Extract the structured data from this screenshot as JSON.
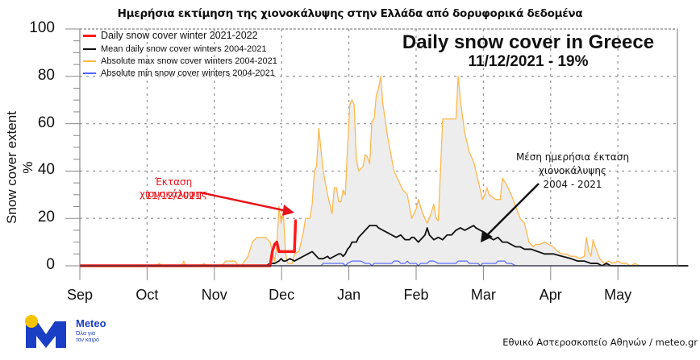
{
  "header": {
    "title": "Ημερήσια εκτίμηση της χιονοκάλυψης στην Ελλάδα από δορυφορικά δεδομένα"
  },
  "plot_title": {
    "line1": "Daily snow cover in Greece",
    "line2": "11/12/2021 - 19%"
  },
  "annotations": {
    "current": {
      "line1": "Έκταση χιονοκάλυψης",
      "line2": "11/12/2021",
      "color": "#e8141b"
    },
    "mean": {
      "line1": "Μέση ημερήσια έκταση",
      "line2": "χιονοκάλυψης",
      "line3": "2004 - 2021",
      "color": "#111111"
    }
  },
  "logo": {
    "name": "Meteo",
    "tagline_1": "Όλα για",
    "tagline_2": "τον καιρό",
    "primary_color": "#1a3fc4",
    "accent_color": "#f5c400"
  },
  "footer": {
    "credit": "Εθνικό Αστεροσκοπείο Αθηνών / meteo.gr"
  },
  "chart_data": {
    "type": "area",
    "title": "Daily snow cover in Greece",
    "subtitle": "11/12/2021 - 19%",
    "xlabel": "",
    "ylabel": "Snow cover extent %",
    "ylim": [
      0,
      100
    ],
    "yticks": [
      0,
      20,
      40,
      60,
      80,
      100
    ],
    "xticks": [
      "Sep",
      "Oct",
      "Nov",
      "Dec",
      "Jan",
      "Feb",
      "Mar",
      "Apr",
      "May"
    ],
    "x_unit": "days since Sep 1",
    "grid": true,
    "legend_position": "upper left",
    "legend": [
      {
        "label": "Daily snow cover winter 2021-2022",
        "color": "#ff1a1a"
      },
      {
        "label": "Mean daily snow cover winters 2004-2021",
        "color": "#111111"
      },
      {
        "label": "Absolute max snow cover winters 2004-2021",
        "color": "#ffb84d"
      },
      {
        "label": "Absolute min snow cover winters 2004-2021",
        "color": "#5566ff"
      }
    ],
    "series": [
      {
        "name": "Absolute max snow cover winters 2004-2021",
        "color": "#ffb84d",
        "fill": "#ededed",
        "points": [
          [
            0,
            0
          ],
          [
            34,
            0
          ],
          [
            36,
            1
          ],
          [
            37,
            0
          ],
          [
            46,
            0
          ],
          [
            47,
            2
          ],
          [
            48,
            0
          ],
          [
            55,
            0
          ],
          [
            56,
            1
          ],
          [
            57,
            0
          ],
          [
            64,
            0
          ],
          [
            66,
            2
          ],
          [
            70,
            2
          ],
          [
            72,
            0
          ],
          [
            73,
            0
          ],
          [
            76,
            4
          ],
          [
            78,
            10
          ],
          [
            80,
            12
          ],
          [
            84,
            12
          ],
          [
            86,
            10
          ],
          [
            88,
            2
          ],
          [
            89,
            8
          ],
          [
            90,
            25
          ],
          [
            91,
            18
          ],
          [
            92,
            22
          ],
          [
            93,
            5
          ],
          [
            94,
            1
          ],
          [
            96,
            1
          ],
          [
            97,
            5
          ],
          [
            99,
            6
          ],
          [
            101,
            14
          ],
          [
            102,
            20
          ],
          [
            104,
            20
          ],
          [
            105,
            26
          ],
          [
            106,
            40
          ],
          [
            107,
            42
          ],
          [
            108,
            58
          ],
          [
            109,
            49
          ],
          [
            110,
            40
          ],
          [
            111,
            35
          ],
          [
            112,
            30
          ],
          [
            113,
            26
          ],
          [
            114,
            22
          ],
          [
            115,
            33
          ],
          [
            116,
            33
          ],
          [
            117,
            27
          ],
          [
            118,
            27
          ],
          [
            119,
            32
          ],
          [
            120,
            30
          ],
          [
            121,
            50
          ],
          [
            122,
            68
          ],
          [
            123,
            70
          ],
          [
            124,
            68
          ],
          [
            125,
            45
          ],
          [
            126,
            40
          ],
          [
            128,
            42
          ],
          [
            129,
            47
          ],
          [
            130,
            46
          ],
          [
            131,
            43
          ],
          [
            132,
            61
          ],
          [
            133,
            62
          ],
          [
            134,
            72
          ],
          [
            135,
            75
          ],
          [
            136,
            80
          ],
          [
            137,
            68
          ],
          [
            138,
            62
          ],
          [
            139,
            55
          ],
          [
            140,
            50
          ],
          [
            142,
            40
          ],
          [
            144,
            36
          ],
          [
            146,
            32
          ],
          [
            148,
            30
          ],
          [
            150,
            20
          ],
          [
            152,
            24
          ],
          [
            153,
            28
          ],
          [
            155,
            22
          ],
          [
            157,
            18
          ],
          [
            158,
            20
          ],
          [
            160,
            26
          ],
          [
            161,
            20
          ],
          [
            162,
            19
          ],
          [
            163,
            40
          ],
          [
            164,
            62
          ],
          [
            168,
            62
          ],
          [
            170,
            62
          ],
          [
            171,
            80
          ],
          [
            172,
            70
          ],
          [
            174,
            56
          ],
          [
            176,
            48
          ],
          [
            178,
            44
          ],
          [
            179,
            40
          ],
          [
            180,
            36
          ],
          [
            182,
            28
          ],
          [
            183,
            30
          ],
          [
            184,
            33
          ],
          [
            185,
            30
          ],
          [
            188,
            28
          ],
          [
            190,
            28
          ],
          [
            191,
            37
          ],
          [
            193,
            34
          ],
          [
            195,
            30
          ],
          [
            197,
            25
          ],
          [
            199,
            20
          ],
          [
            201,
            18
          ],
          [
            203,
            10
          ],
          [
            205,
            8
          ],
          [
            206,
            9
          ],
          [
            208,
            9
          ],
          [
            210,
            10
          ],
          [
            212,
            9
          ],
          [
            214,
            8
          ],
          [
            216,
            6
          ],
          [
            218,
            5
          ],
          [
            220,
            5
          ],
          [
            222,
            4
          ],
          [
            224,
            4
          ],
          [
            226,
            3
          ],
          [
            228,
            4
          ],
          [
            229,
            12
          ],
          [
            230,
            6
          ],
          [
            231,
            4
          ],
          [
            232,
            11
          ],
          [
            233,
            8
          ],
          [
            235,
            3
          ],
          [
            237,
            1
          ],
          [
            239,
            2
          ],
          [
            241,
            1
          ],
          [
            243,
            2
          ],
          [
            245,
            1
          ],
          [
            247,
            1
          ],
          [
            249,
            0
          ],
          [
            251,
            1
          ],
          [
            253,
            0
          ],
          [
            270,
            0
          ],
          [
            275,
            0
          ]
        ]
      },
      {
        "name": "Mean daily snow cover winters 2004-2021",
        "color": "#111111",
        "points": [
          [
            0,
            0
          ],
          [
            78,
            0
          ],
          [
            84,
            0
          ],
          [
            86,
            1
          ],
          [
            88,
            1
          ],
          [
            90,
            2
          ],
          [
            91,
            3
          ],
          [
            92,
            2
          ],
          [
            93,
            2
          ],
          [
            95,
            3
          ],
          [
            97,
            2
          ],
          [
            99,
            3
          ],
          [
            101,
            4
          ],
          [
            103,
            5
          ],
          [
            105,
            6
          ],
          [
            106,
            5
          ],
          [
            108,
            3
          ],
          [
            110,
            3
          ],
          [
            112,
            4
          ],
          [
            113,
            3
          ],
          [
            115,
            4
          ],
          [
            117,
            5
          ],
          [
            118,
            5
          ],
          [
            119,
            4
          ],
          [
            120,
            5
          ],
          [
            121,
            7
          ],
          [
            122,
            8
          ],
          [
            123,
            10
          ],
          [
            125,
            10
          ],
          [
            126,
            12
          ],
          [
            128,
            14
          ],
          [
            130,
            16
          ],
          [
            131,
            17
          ],
          [
            134,
            17
          ],
          [
            135,
            16
          ],
          [
            137,
            15
          ],
          [
            139,
            14
          ],
          [
            141,
            13
          ],
          [
            143,
            12
          ],
          [
            145,
            13
          ],
          [
            147,
            11
          ],
          [
            149,
            11
          ],
          [
            150,
            12
          ],
          [
            151,
            12
          ],
          [
            153,
            10
          ],
          [
            155,
            12
          ],
          [
            156,
            13
          ],
          [
            157,
            16
          ],
          [
            158,
            13
          ],
          [
            160,
            11
          ],
          [
            162,
            12
          ],
          [
            164,
            11
          ],
          [
            166,
            13
          ],
          [
            168,
            13
          ],
          [
            170,
            15
          ],
          [
            172,
            16
          ],
          [
            174,
            15
          ],
          [
            176,
            16
          ],
          [
            178,
            17
          ],
          [
            179,
            16
          ],
          [
            181,
            15
          ],
          [
            183,
            14
          ],
          [
            185,
            12
          ],
          [
            187,
            11
          ],
          [
            189,
            12
          ],
          [
            191,
            10
          ],
          [
            193,
            10
          ],
          [
            195,
            9
          ],
          [
            197,
            8
          ],
          [
            199,
            8
          ],
          [
            201,
            7
          ],
          [
            204,
            7
          ],
          [
            207,
            6
          ],
          [
            210,
            5
          ],
          [
            214,
            5
          ],
          [
            218,
            4
          ],
          [
            222,
            3
          ],
          [
            225,
            2
          ],
          [
            228,
            2
          ],
          [
            231,
            1
          ],
          [
            234,
            1
          ],
          [
            236,
            0
          ],
          [
            238,
            1
          ],
          [
            240,
            0
          ],
          [
            275,
            0
          ]
        ]
      },
      {
        "name": "Absolute min snow cover winters 2004-2021",
        "color": "#5566ff",
        "points": [
          [
            0,
            0
          ],
          [
            109,
            0
          ],
          [
            110,
            1
          ],
          [
            119,
            1
          ],
          [
            120,
            0
          ],
          [
            121,
            1
          ],
          [
            123,
            2
          ],
          [
            127,
            2
          ],
          [
            129,
            1
          ],
          [
            131,
            1
          ],
          [
            132,
            0
          ],
          [
            133,
            1
          ],
          [
            141,
            1
          ],
          [
            142,
            2
          ],
          [
            144,
            2
          ],
          [
            145,
            1
          ],
          [
            147,
            1
          ],
          [
            148,
            2
          ],
          [
            149,
            1
          ],
          [
            152,
            1
          ],
          [
            153,
            0
          ],
          [
            154,
            1
          ],
          [
            157,
            1
          ],
          [
            158,
            2
          ],
          [
            160,
            2
          ],
          [
            162,
            1
          ],
          [
            170,
            1
          ],
          [
            171,
            2
          ],
          [
            175,
            2
          ],
          [
            176,
            1
          ],
          [
            180,
            1
          ],
          [
            181,
            0
          ],
          [
            182,
            1
          ],
          [
            188,
            1
          ],
          [
            189,
            2
          ],
          [
            192,
            2
          ],
          [
            193,
            1
          ],
          [
            195,
            1
          ],
          [
            197,
            0
          ],
          [
            275,
            0
          ]
        ]
      },
      {
        "name": "Daily snow cover winter 2021-2022",
        "color": "#ff1a1a",
        "points": [
          [
            0,
            0
          ],
          [
            85,
            0
          ],
          [
            86,
            0
          ],
          [
            87,
            6
          ],
          [
            88,
            9
          ],
          [
            89,
            10
          ],
          [
            90,
            6
          ],
          [
            91,
            6
          ],
          [
            95,
            6
          ],
          [
            96,
            6
          ],
          [
            97,
            6
          ],
          [
            97.5,
            19
          ],
          [
            98,
            19
          ]
        ]
      }
    ]
  }
}
